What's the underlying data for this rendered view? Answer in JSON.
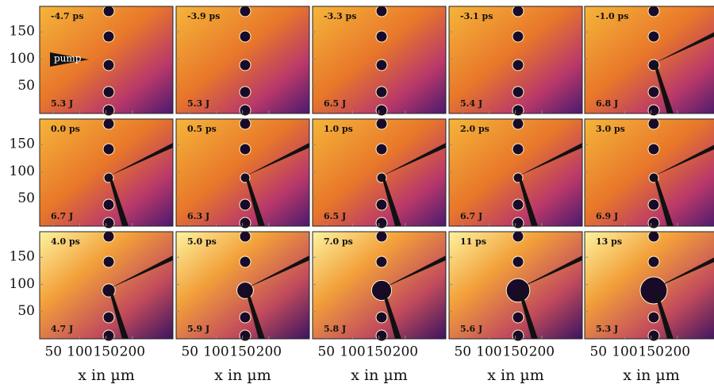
{
  "chart_data": {
    "type": "image-grid",
    "xlabel": "x in µm",
    "xlim": [
      24,
      277
    ],
    "ylim": [
      0,
      197
    ],
    "xticks": [
      50,
      100,
      150,
      200
    ],
    "yticks": [
      50,
      100,
      150
    ],
    "annotation": "pump",
    "panels": [
      {
        "time": "-4.7 ps",
        "energy": "5.3 J"
      },
      {
        "time": "-3.9 ps",
        "energy": "5.3 J"
      },
      {
        "time": "-3.3 ps",
        "energy": "6.5 J"
      },
      {
        "time": "-3.1 ps",
        "energy": "5.4 J"
      },
      {
        "time": "-1.0 ps",
        "energy": "6.8 J"
      },
      {
        "time": "0.0 ps",
        "energy": "6.7 J"
      },
      {
        "time": "0.5 ps",
        "energy": "6.3 J"
      },
      {
        "time": "1.0 ps",
        "energy": "6.5 J"
      },
      {
        "time": "2.0 ps",
        "energy": "6.7 J"
      },
      {
        "time": "3.0 ps",
        "energy": "6.9 J"
      },
      {
        "time": "4.0 ps",
        "energy": "4.7 J"
      },
      {
        "time": "5.0 ps",
        "energy": "5.9 J"
      },
      {
        "time": "7.0 ps",
        "energy": "5.8 J"
      },
      {
        "time": "11 ps",
        "energy": "5.6 J"
      },
      {
        "time": "13 ps",
        "energy": "5.3 J"
      }
    ]
  }
}
